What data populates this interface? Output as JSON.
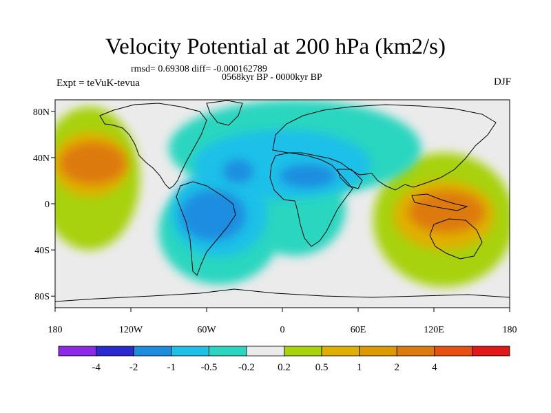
{
  "header": {
    "title": "Velocity Potential at 200 hPa (km2/s)",
    "stats": "rmsd= 0.69308 diff= -0.000162789",
    "period": "0568kyr BP - 0000kyr BP",
    "experiment": "Expt = teVuK-tevua",
    "season": "DJF"
  },
  "map": {
    "lon_range": [
      -180,
      180
    ],
    "lat_range": [
      -90,
      90
    ],
    "lat_ticks": [
      {
        "value": 80,
        "label": "80N"
      },
      {
        "value": 40,
        "label": "40N"
      },
      {
        "value": 0,
        "label": "0"
      },
      {
        "value": -40,
        "label": "40S"
      },
      {
        "value": -80,
        "label": "80S"
      }
    ],
    "lon_ticks": [
      {
        "value": -180,
        "label": "180"
      },
      {
        "value": -120,
        "label": "120W"
      },
      {
        "value": -60,
        "label": "60W"
      },
      {
        "value": 0,
        "label": "0"
      },
      {
        "value": 60,
        "label": "60E"
      },
      {
        "value": 120,
        "label": "120E"
      },
      {
        "value": 180,
        "label": "180"
      }
    ],
    "background_color": "#ebebeb",
    "blobs": [
      {
        "name": "pacific-west-positive",
        "color": "#a8d20a",
        "lon": -153,
        "lat": 22,
        "rlon": 40,
        "rlat": 62
      },
      {
        "name": "pacific-west-positive-mid",
        "color": "#e0b000",
        "lon": -152,
        "lat": 34,
        "rlon": 30,
        "rlat": 28
      },
      {
        "name": "pacific-west-positive-core",
        "color": "#dd7a0c",
        "lon": -150,
        "lat": 35,
        "rlon": 26,
        "rlat": 18
      },
      {
        "name": "indo-pacific-positive",
        "color": "#a8d20a",
        "lon": 128,
        "lat": -14,
        "rlon": 56,
        "rlat": 58
      },
      {
        "name": "indo-pacific-positive-mid",
        "color": "#e0b000",
        "lon": 128,
        "lat": -10,
        "rlon": 40,
        "rlat": 30
      },
      {
        "name": "indo-pacific-positive-core",
        "color": "#dd7a0c",
        "lon": 130,
        "lat": -7,
        "rlon": 30,
        "rlat": 18
      },
      {
        "name": "atlantic-south-negative",
        "color": "#2ad6c0",
        "lon": -50,
        "lat": -24,
        "rlon": 48,
        "rlat": 46
      },
      {
        "name": "africa-negative",
        "color": "#2ad6c0",
        "lon": 10,
        "lat": -5,
        "rlon": 40,
        "rlat": 40
      },
      {
        "name": "eurasia-negative",
        "color": "#2ad6c0",
        "lon": 10,
        "lat": 48,
        "rlon": 100,
        "rlat": 42
      },
      {
        "name": "americas-negative-mid",
        "color": "#1ec0e8",
        "lon": -50,
        "lat": -8,
        "rlon": 38,
        "rlat": 38
      },
      {
        "name": "eurasia-negative-mid",
        "color": "#1ec0e8",
        "lon": 0,
        "lat": 34,
        "rlon": 70,
        "rlat": 30
      },
      {
        "name": "americas-negative-core",
        "color": "#1d8de0",
        "lon": -55,
        "lat": -10,
        "rlon": 26,
        "rlat": 22
      },
      {
        "name": "africa-north-negative-core",
        "color": "#1d8de0",
        "lon": 20,
        "lat": 24,
        "rlon": 22,
        "rlat": 10
      },
      {
        "name": "atlantic-north-negative-core",
        "color": "#1d8de0",
        "lon": -35,
        "lat": 28,
        "rlon": 12,
        "rlat": 10
      }
    ]
  },
  "colorbar": {
    "colors": [
      "#8c28e8",
      "#2a2ad0",
      "#1d8de0",
      "#1ec0e8",
      "#2ad6c0",
      "#ebebeb",
      "#a8d20a",
      "#e0b000",
      "#dd9a00",
      "#dd7a0c",
      "#e85010",
      "#e01818"
    ],
    "labels": [
      "-4",
      "-2",
      "-1",
      "-0.5",
      "-0.2",
      "0.2",
      "0.5",
      "1",
      "2",
      "4"
    ]
  }
}
